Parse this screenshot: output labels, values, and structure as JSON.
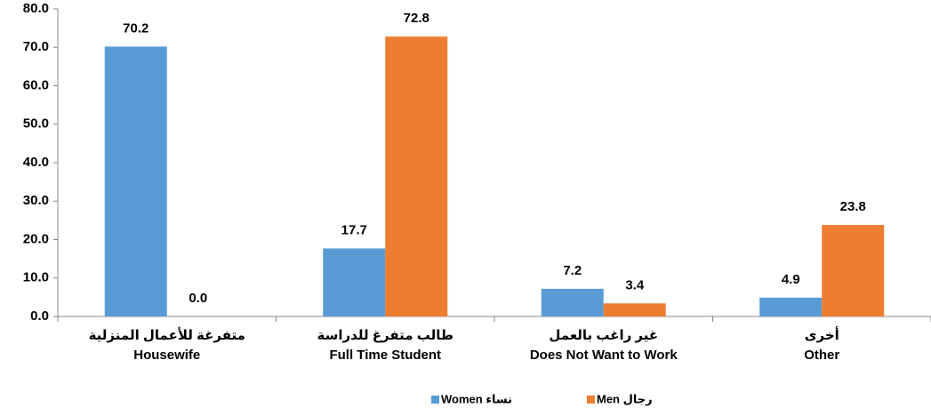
{
  "chart_data": {
    "type": "bar",
    "categories": [
      [
        "متفرغة للأعمال المنزلية",
        "Housewife"
      ],
      [
        "طالب متفرغ للدراسة",
        "Full Time Student"
      ],
      [
        "غير راغب بالعمل",
        "Does Not Want to Work"
      ],
      [
        "أخرى",
        "Other"
      ]
    ],
    "series": [
      {
        "name": "Women نساء",
        "color": "#5b9bd5",
        "values": [
          70.2,
          17.7,
          7.2,
          4.9
        ],
        "value_labels": [
          "70.2",
          "17.7",
          "7.2",
          "4.9"
        ]
      },
      {
        "name": "Men رجال",
        "color": "#ed7d31",
        "values": [
          0,
          72.8,
          3.4,
          23.8
        ],
        "value_labels": [
          "0.0",
          "72.8",
          "3.4",
          "23.8"
        ]
      }
    ],
    "ylim": [
      0,
      80
    ],
    "yticks": [
      {
        "value": 0,
        "label": "0.0"
      },
      {
        "value": 10,
        "label": "10.0"
      },
      {
        "value": 20,
        "label": "20.0"
      },
      {
        "value": 30,
        "label": "30.0"
      },
      {
        "value": 40,
        "label": "40.0"
      },
      {
        "value": 50,
        "label": "50.0"
      },
      {
        "value": 60,
        "label": "60.0"
      },
      {
        "value": 70,
        "label": "70.0"
      },
      {
        "value": 80,
        "label": "80.0"
      }
    ],
    "legend": "bottom",
    "grid": false
  }
}
